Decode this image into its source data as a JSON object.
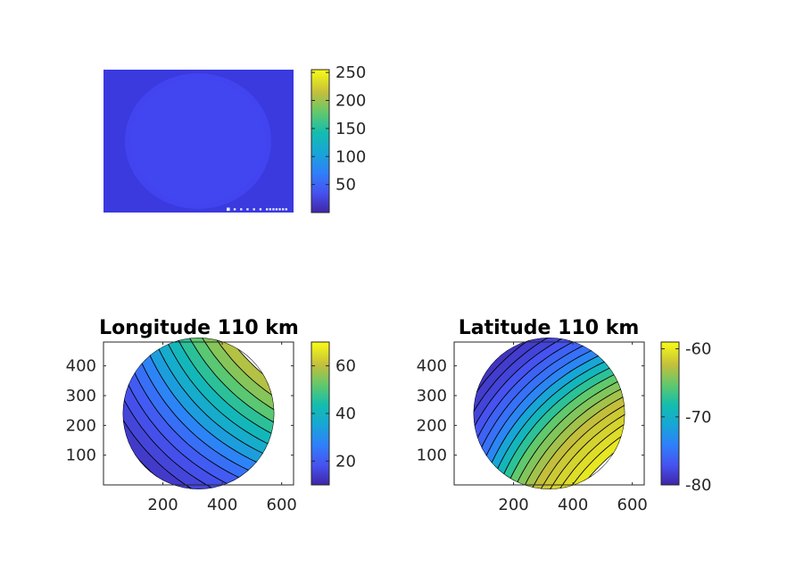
{
  "figure": {
    "background": "#ffffff"
  },
  "chart_data": [
    {
      "type": "heatmap",
      "kind": "camera-image",
      "title": "",
      "x_ticks": [],
      "y_ticks": [],
      "colorbar": {
        "range": [
          0,
          255
        ],
        "ticks": [
          50,
          100,
          150,
          200,
          250
        ],
        "colormap": "parula"
      },
      "image": {
        "background_value": 35,
        "disk_value": 45,
        "corner_text": "■ ▪ ▪ ▪ ▪ ▪ ▪▪▪▪▪▪▪"
      }
    },
    {
      "type": "heatmap",
      "kind": "contour",
      "title": "Longitude 110 km",
      "xlim": [
        0,
        640
      ],
      "ylim": [
        0,
        480
      ],
      "x_ticks": [
        200,
        400,
        600
      ],
      "y_ticks": [
        100,
        200,
        300,
        400
      ],
      "disk": {
        "center": [
          320,
          240
        ],
        "radius": 255
      },
      "colorbar": {
        "range": [
          10,
          70
        ],
        "ticks": [
          20,
          40,
          60
        ],
        "colormap": "parula"
      },
      "field": {
        "direction": "diagonal",
        "bands": [
          12,
          14,
          16,
          18,
          20,
          24,
          28,
          34,
          38,
          42,
          47,
          52,
          56,
          60
        ]
      }
    },
    {
      "type": "heatmap",
      "kind": "contour",
      "title": "Latitude 110 km",
      "xlim": [
        0,
        640
      ],
      "ylim": [
        0,
        480
      ],
      "x_ticks": [
        200,
        400,
        600
      ],
      "y_ticks": [
        100,
        200,
        300,
        400
      ],
      "disk": {
        "center": [
          320,
          240
        ],
        "radius": 255
      },
      "colorbar": {
        "range": [
          -80,
          -59
        ],
        "ticks": [
          -60,
          -70,
          -80
        ],
        "colormap": "parula"
      },
      "field": {
        "direction": "anti-diagonal",
        "bands": [
          -79.5,
          -79,
          -78.5,
          -78,
          -77,
          -76,
          -75,
          -73.5,
          -71,
          -69,
          -67,
          -65,
          -64,
          -63,
          -62,
          -61.5,
          -61,
          -60.5,
          -60
        ]
      }
    }
  ]
}
